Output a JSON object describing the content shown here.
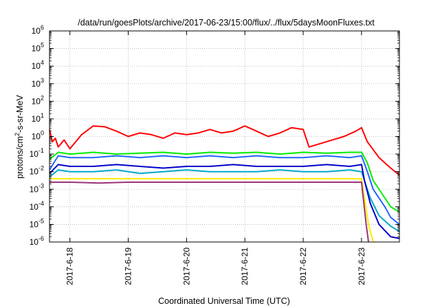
{
  "chart_data": {
    "type": "line",
    "title": "/data/run/goesPlots/archive/2017-06-23/15:00/flux/../flux/5daysMoonFluxes.txt",
    "xlabel": "Coordinated Universal Time (UTC)",
    "ylabel": "protons/cm2-s-sr-MeV",
    "ylabel_parts": {
      "pre": "protons/cm",
      "sup": "2",
      "post": "-s-sr-MeV"
    },
    "xlim_days": [
      -0.35,
      5.65
    ],
    "x_ticks": [
      {
        "label": "2017-6-18",
        "day": 0
      },
      {
        "label": "2017-6-19",
        "day": 1
      },
      {
        "label": "2017-6-20",
        "day": 2
      },
      {
        "label": "2017-6-21",
        "day": 3
      },
      {
        "label": "2017-6-22",
        "day": 4
      },
      {
        "label": "2017-6-23",
        "day": 5
      }
    ],
    "y_scale": "log",
    "ylim_exp": [
      -6,
      6
    ],
    "y_ticks": [
      {
        "base": "10",
        "exp": "6",
        "v": 6
      },
      {
        "base": "10",
        "exp": "5",
        "v": 5
      },
      {
        "base": "10",
        "exp": "4",
        "v": 4
      },
      {
        "base": "10",
        "exp": "3",
        "v": 3
      },
      {
        "base": "10",
        "exp": "2",
        "v": 2
      },
      {
        "base": "10",
        "exp": "1",
        "v": 1
      },
      {
        "base": "10",
        "exp": "0",
        "v": 0
      },
      {
        "base": "10",
        "exp": "-1",
        "v": -1
      },
      {
        "base": "10",
        "exp": "-2",
        "v": -2
      },
      {
        "base": "10",
        "exp": "-3",
        "v": -3
      },
      {
        "base": "10",
        "exp": "-4",
        "v": -4
      },
      {
        "base": "10",
        "exp": "-5",
        "v": -5
      },
      {
        "base": "10",
        "exp": "-6",
        "v": -6
      }
    ],
    "grid": true,
    "series": [
      {
        "color": "#ff0000",
        "x": [
          -0.35,
          -0.3,
          -0.25,
          -0.2,
          -0.1,
          0,
          0.2,
          0.4,
          0.6,
          0.8,
          1,
          1.2,
          1.4,
          1.6,
          1.8,
          2,
          2.2,
          2.4,
          2.6,
          2.8,
          3,
          3.2,
          3.4,
          3.6,
          3.8,
          4,
          4.1,
          4.3,
          4.5,
          4.7,
          4.9,
          5,
          5.1,
          5.3,
          5.5,
          5.65
        ],
        "y": [
          0.4,
          -0.3,
          -0.1,
          -0.6,
          -0.2,
          -0.7,
          0.1,
          0.6,
          0.55,
          0.3,
          0,
          0.2,
          0.1,
          -0.1,
          0.2,
          0.1,
          0.2,
          0.4,
          0.2,
          0.3,
          0.6,
          0.3,
          0,
          0.2,
          0.5,
          0.4,
          -0.6,
          -0.4,
          -0.2,
          0,
          0.3,
          0.5,
          -0.3,
          -1.2,
          -1.8,
          -2.2
        ]
      },
      {
        "color": "#00ee00",
        "x": [
          -0.35,
          -0.2,
          0,
          0.4,
          0.8,
          1.2,
          1.6,
          2,
          2.4,
          2.8,
          3.2,
          3.6,
          4,
          4.4,
          4.8,
          5,
          5.1,
          5.2,
          5.4,
          5.5,
          5.65
        ],
        "y": [
          -1.3,
          -0.9,
          -1,
          -0.9,
          -1,
          -0.95,
          -0.9,
          -1,
          -0.9,
          -0.95,
          -0.9,
          -1,
          -0.9,
          -0.95,
          -0.9,
          -0.9,
          -1.5,
          -2.5,
          -3.5,
          -4,
          -4.3
        ]
      },
      {
        "color": "#2266ff",
        "x": [
          -0.35,
          -0.2,
          0,
          0.4,
          0.8,
          1.2,
          1.6,
          2,
          2.4,
          2.8,
          3.2,
          3.6,
          4,
          4.4,
          4.8,
          5,
          5.1,
          5.2,
          5.4,
          5.5,
          5.65
        ],
        "y": [
          -1.9,
          -1.1,
          -1.2,
          -1.2,
          -1.1,
          -1.2,
          -1.1,
          -1.2,
          -1.1,
          -1.2,
          -1.1,
          -1.2,
          -1.2,
          -1.1,
          -1.2,
          -1.1,
          -2,
          -3,
          -4,
          -4.6,
          -5
        ]
      },
      {
        "color": "#00aacc",
        "x": [
          -0.35,
          -0.2,
          0,
          0.4,
          0.8,
          1.2,
          1.6,
          2,
          2.4,
          2.8,
          3.2,
          3.6,
          4,
          4.4,
          4.8,
          5,
          5.05,
          5.15,
          5.3,
          5.5,
          5.65
        ],
        "y": [
          -2.3,
          -1.9,
          -2,
          -2,
          -1.9,
          -2.1,
          -2,
          -1.9,
          -2,
          -2,
          -2,
          -1.9,
          -2,
          -2,
          -1.9,
          -2,
          -2.5,
          -3.5,
          -4.5,
          -5.1,
          -5.4
        ]
      },
      {
        "color": "#0000cc",
        "x": [
          -0.35,
          -0.2,
          0,
          0.4,
          0.8,
          1.2,
          1.6,
          2,
          2.4,
          2.8,
          3.2,
          3.6,
          4,
          4.4,
          4.8,
          5,
          5.05,
          5.15,
          5.3,
          5.5,
          5.65
        ],
        "y": [
          -2.1,
          -1.6,
          -1.7,
          -1.7,
          -1.6,
          -1.7,
          -1.8,
          -1.7,
          -1.7,
          -1.6,
          -1.7,
          -1.7,
          -1.7,
          -1.6,
          -1.7,
          -1.6,
          -2.5,
          -3.8,
          -5,
          -5.7,
          -5.8
        ]
      },
      {
        "color": "#ffee00",
        "x": [
          -0.35,
          0,
          0.5,
          1,
          1.5,
          2,
          2.5,
          3,
          3.5,
          4,
          4.5,
          5,
          5.05,
          5.12,
          5.2
        ],
        "y": [
          -2.4,
          -2.4,
          -2.4,
          -2.4,
          -2.4,
          -2.4,
          -2.4,
          -2.4,
          -2.4,
          -2.4,
          -2.4,
          -2.4,
          -3.5,
          -5,
          -6
        ]
      },
      {
        "color": "#993377",
        "x": [
          -0.35,
          0,
          0.5,
          1,
          1.5,
          2,
          2.5,
          3,
          3.5,
          4,
          4.5,
          5,
          5.03,
          5.08,
          5.12
        ],
        "y": [
          -2.6,
          -2.6,
          -2.65,
          -2.6,
          -2.6,
          -2.6,
          -2.6,
          -2.6,
          -2.6,
          -2.6,
          -2.6,
          -2.6,
          -3.5,
          -5,
          -6
        ]
      }
    ]
  }
}
